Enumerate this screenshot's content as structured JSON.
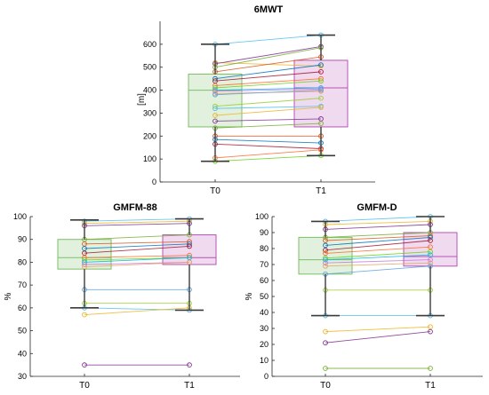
{
  "chart_data": [
    {
      "type": "box",
      "title": "6MWT",
      "ylabel": "[m]",
      "ylim": [
        0,
        700
      ],
      "yticks": [
        0,
        100,
        200,
        300,
        400,
        500,
        600
      ],
      "categories": [
        "T0",
        "T1"
      ],
      "boxes": [
        {
          "label": "T0",
          "min": 90,
          "q1": 240,
          "median": 400,
          "q3": 470,
          "max": 600,
          "color": "#7cbf6a"
        },
        {
          "label": "T1",
          "min": 115,
          "q1": 240,
          "median": 410,
          "q3": 530,
          "max": 640,
          "color": "#b455b4"
        }
      ],
      "pairs": [
        [
          600,
          640
        ],
        [
          520,
          505
        ],
        [
          515,
          590
        ],
        [
          500,
          585
        ],
        [
          480,
          545
        ],
        [
          450,
          510
        ],
        [
          440,
          480
        ],
        [
          420,
          450
        ],
        [
          410,
          440
        ],
        [
          400,
          410
        ],
        [
          395,
          405
        ],
        [
          385,
          395
        ],
        [
          380,
          400
        ],
        [
          330,
          365
        ],
        [
          320,
          330
        ],
        [
          290,
          325
        ],
        [
          265,
          275
        ],
        [
          235,
          255
        ],
        [
          200,
          200
        ],
        [
          185,
          170
        ],
        [
          165,
          145
        ],
        [
          105,
          140
        ],
        [
          90,
          115
        ]
      ]
    },
    {
      "type": "box",
      "title": "GMFM-88",
      "ylabel": "%",
      "ylim": [
        30,
        100
      ],
      "yticks": [
        30,
        40,
        50,
        60,
        70,
        80,
        90,
        100
      ],
      "categories": [
        "T0",
        "T1"
      ],
      "boxes": [
        {
          "label": "T0",
          "min": 60,
          "q1": 77,
          "median": 82,
          "q3": 90,
          "max": 98.5,
          "color": "#7cbf6a"
        },
        {
          "label": "T1",
          "min": 59,
          "q1": 79,
          "median": 82,
          "q3": 92,
          "max": 99,
          "color": "#b455b4"
        }
      ],
      "pairs": [
        [
          98,
          99
        ],
        [
          97,
          98
        ],
        [
          96,
          97
        ],
        [
          90,
          92
        ],
        [
          88,
          89
        ],
        [
          86,
          88
        ],
        [
          84,
          87
        ],
        [
          82,
          83
        ],
        [
          81,
          82
        ],
        [
          80,
          82
        ],
        [
          79,
          80
        ],
        [
          78,
          80
        ],
        [
          68,
          68
        ],
        [
          62,
          62
        ],
        [
          60,
          59
        ],
        [
          57,
          60
        ],
        [
          35,
          35
        ]
      ]
    },
    {
      "type": "box",
      "title": "GMFM-D",
      "ylabel": "%",
      "ylim": [
        0,
        100
      ],
      "yticks": [
        0,
        10,
        20,
        30,
        40,
        50,
        60,
        70,
        80,
        90,
        100
      ],
      "categories": [
        "T0",
        "T1"
      ],
      "boxes": [
        {
          "label": "T0",
          "min": 38,
          "q1": 64,
          "median": 73,
          "q3": 87,
          "max": 97,
          "color": "#7cbf6a"
        },
        {
          "label": "T1",
          "min": 38,
          "q1": 69,
          "median": 75,
          "q3": 90,
          "max": 100,
          "color": "#b455b4"
        }
      ],
      "pairs": [
        [
          97,
          100
        ],
        [
          95,
          97
        ],
        [
          92,
          95
        ],
        [
          87,
          90
        ],
        [
          85,
          88
        ],
        [
          82,
          87
        ],
        [
          79,
          85
        ],
        [
          77,
          81
        ],
        [
          74,
          78
        ],
        [
          73,
          76
        ],
        [
          71,
          73
        ],
        [
          69,
          71
        ],
        [
          64,
          69
        ],
        [
          54,
          54
        ],
        [
          38,
          38
        ],
        [
          28,
          31
        ],
        [
          21,
          28
        ],
        [
          5,
          5
        ]
      ]
    }
  ]
}
